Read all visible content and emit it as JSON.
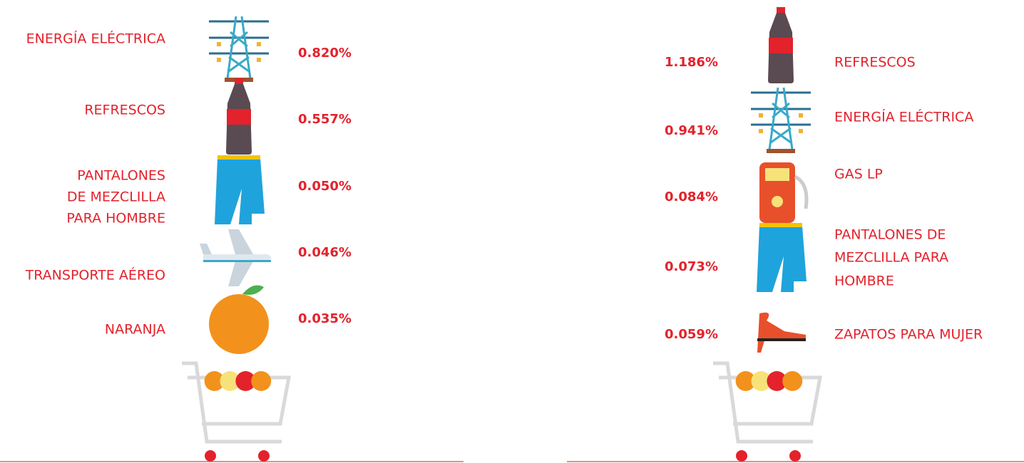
{
  "left": {
    "items": [
      {
        "label": [
          "ENERGÍA ELÉCTRICA"
        ],
        "value": "0.820%"
      },
      {
        "label": [
          "REFRESCOS"
        ],
        "value": "0.557%"
      },
      {
        "label": [
          "PANTALONES",
          "DE MEZCLILLA",
          "PARA HOMBRE"
        ],
        "value": "0.050%"
      },
      {
        "label": [
          "TRANSPORTE AÉREO"
        ],
        "value": "0.046%"
      },
      {
        "label": [
          "NARANJA"
        ],
        "value": "0.035%"
      }
    ]
  },
  "right": {
    "items": [
      {
        "label": [
          "REFRESCOS"
        ],
        "value": "1.186%"
      },
      {
        "label": [
          "ENERGÍA ELÉCTRICA"
        ],
        "value": "0.941%"
      },
      {
        "label": [
          "GAS LP"
        ],
        "value": "0.084%"
      },
      {
        "label": [
          "PANTALONES DE",
          "MEZCLILLA PARA",
          "HOMBRE"
        ],
        "value": "0.073%"
      },
      {
        "label": [
          "ZAPATOS PARA MUJER"
        ],
        "value": "0.059%"
      }
    ]
  }
}
